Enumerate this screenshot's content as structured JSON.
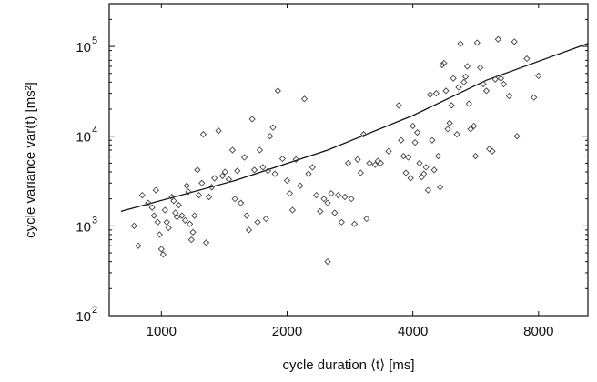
{
  "chart_data": {
    "type": "scatter",
    "title": "",
    "xlabel": "cycle duration ⟨t⟩ [ms]",
    "ylabel": "cycle variance  var(t)  [ms²]",
    "x_scale": "log2",
    "y_scale": "log10",
    "xlim": [
      750,
      10500
    ],
    "ylim": [
      100,
      300000
    ],
    "x_ticks": [
      1000,
      2000,
      4000,
      8000
    ],
    "x_tick_labels": [
      "1000",
      "2000",
      "4000",
      "8000"
    ],
    "y_ticks": [
      100,
      1000,
      10000,
      100000
    ],
    "y_tick_labels": [
      {
        "base": "10",
        "exp": "2"
      },
      {
        "base": "10",
        "exp": "3"
      },
      {
        "base": "10",
        "exp": "4"
      },
      {
        "base": "10",
        "exp": "5"
      }
    ],
    "grid": false,
    "legend": "none",
    "marker": "diamond",
    "point_color": "#444444",
    "fit_line": {
      "x": [
        800,
        1500,
        2500,
        4000,
        6000,
        10500
      ],
      "y": [
        1450,
        3200,
        7000,
        17000,
        42000,
        108000
      ]
    },
    "points": [
      [
        860,
        1000
      ],
      [
        880,
        600
      ],
      [
        900,
        2200
      ],
      [
        930,
        1800
      ],
      [
        950,
        1600
      ],
      [
        960,
        1300
      ],
      [
        970,
        2500
      ],
      [
        980,
        1100
      ],
      [
        990,
        800
      ],
      [
        1000,
        550
      ],
      [
        1010,
        480
      ],
      [
        1020,
        1500
      ],
      [
        1030,
        1100
      ],
      [
        1040,
        950
      ],
      [
        1060,
        2100
      ],
      [
        1070,
        1900
      ],
      [
        1080,
        1400
      ],
      [
        1090,
        1250
      ],
      [
        1100,
        1700
      ],
      [
        1120,
        1300
      ],
      [
        1140,
        1150
      ],
      [
        1150,
        2800
      ],
      [
        1160,
        2400
      ],
      [
        1170,
        1050
      ],
      [
        1180,
        700
      ],
      [
        1190,
        850
      ],
      [
        1200,
        1300
      ],
      [
        1220,
        4200
      ],
      [
        1230,
        2200
      ],
      [
        1250,
        3000
      ],
      [
        1260,
        10500
      ],
      [
        1280,
        650
      ],
      [
        1300,
        2100
      ],
      [
        1320,
        2700
      ],
      [
        1340,
        3400
      ],
      [
        1370,
        11500
      ],
      [
        1400,
        3600
      ],
      [
        1420,
        4000
      ],
      [
        1450,
        3300
      ],
      [
        1480,
        7000
      ],
      [
        1500,
        2000
      ],
      [
        1520,
        4100
      ],
      [
        1550,
        1800
      ],
      [
        1580,
        5800
      ],
      [
        1600,
        1300
      ],
      [
        1620,
        900
      ],
      [
        1650,
        15500
      ],
      [
        1670,
        4200
      ],
      [
        1700,
        1100
      ],
      [
        1720,
        7000
      ],
      [
        1750,
        4500
      ],
      [
        1780,
        1200
      ],
      [
        1800,
        4100
      ],
      [
        1820,
        10000
      ],
      [
        1850,
        12500
      ],
      [
        1870,
        3800
      ],
      [
        1900,
        32000
      ],
      [
        1950,
        5600
      ],
      [
        2000,
        3200
      ],
      [
        2030,
        2300
      ],
      [
        2060,
        1500
      ],
      [
        2100,
        5500
      ],
      [
        2150,
        2800
      ],
      [
        2200,
        26000
      ],
      [
        2250,
        3800
      ],
      [
        2300,
        4500
      ],
      [
        2350,
        2200
      ],
      [
        2400,
        1450
      ],
      [
        2450,
        2000
      ],
      [
        2500,
        1800
      ],
      [
        2500,
        400
      ],
      [
        2550,
        2300
      ],
      [
        2600,
        1400
      ],
      [
        2650,
        2200
      ],
      [
        2700,
        1100
      ],
      [
        2750,
        2100
      ],
      [
        2800,
        5000
      ],
      [
        2850,
        2000
      ],
      [
        2900,
        1050
      ],
      [
        2950,
        5500
      ],
      [
        3000,
        3900
      ],
      [
        3050,
        10500
      ],
      [
        3100,
        1200
      ],
      [
        3150,
        5000
      ],
      [
        3250,
        4800
      ],
      [
        3300,
        5300
      ],
      [
        3350,
        5000
      ],
      [
        3500,
        6800
      ],
      [
        3700,
        22000
      ],
      [
        3750,
        9000
      ],
      [
        3800,
        6000
      ],
      [
        3850,
        3900
      ],
      [
        3900,
        5800
      ],
      [
        3950,
        3400
      ],
      [
        4000,
        13000
      ],
      [
        4050,
        8500
      ],
      [
        4100,
        11000
      ],
      [
        4150,
        5000
      ],
      [
        4200,
        3500
      ],
      [
        4250,
        3800
      ],
      [
        4300,
        4500
      ],
      [
        4350,
        2500
      ],
      [
        4400,
        29000
      ],
      [
        4450,
        9000
      ],
      [
        4500,
        4200
      ],
      [
        4550,
        30000
      ],
      [
        4600,
        6000
      ],
      [
        4650,
        2700
      ],
      [
        4700,
        62000
      ],
      [
        4750,
        65000
      ],
      [
        4800,
        32000
      ],
      [
        4850,
        12000
      ],
      [
        4900,
        14000
      ],
      [
        4950,
        22000
      ],
      [
        5000,
        44000
      ],
      [
        5100,
        10500
      ],
      [
        5150,
        35000
      ],
      [
        5200,
        107000
      ],
      [
        5300,
        40000
      ],
      [
        5350,
        46000
      ],
      [
        5400,
        60000
      ],
      [
        5450,
        23000
      ],
      [
        5500,
        12000
      ],
      [
        5600,
        13000
      ],
      [
        5650,
        6000
      ],
      [
        5700,
        110000
      ],
      [
        5800,
        58000
      ],
      [
        5900,
        38000
      ],
      [
        6000,
        32000
      ],
      [
        6100,
        7200
      ],
      [
        6200,
        6800
      ],
      [
        6300,
        43000
      ],
      [
        6400,
        120000
      ],
      [
        6500,
        44000
      ],
      [
        6600,
        38000
      ],
      [
        6800,
        28000
      ],
      [
        7000,
        113000
      ],
      [
        7100,
        10000
      ],
      [
        7500,
        73000
      ],
      [
        7800,
        27000
      ],
      [
        8000,
        47000
      ]
    ]
  }
}
